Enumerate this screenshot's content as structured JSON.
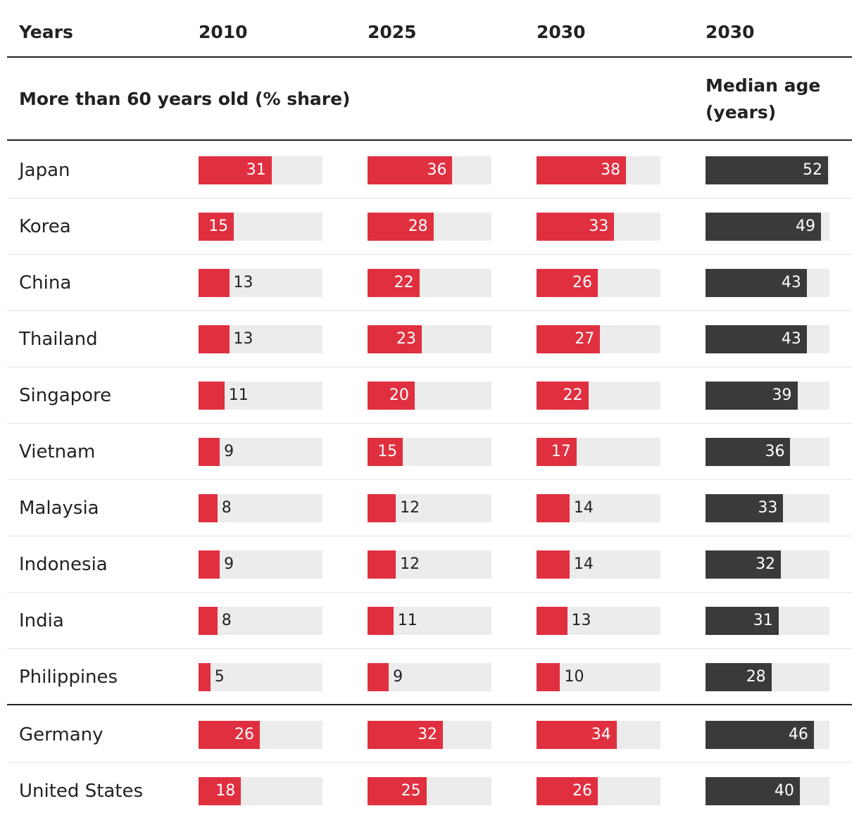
{
  "header": {
    "columns": [
      "Years",
      "2010",
      "2025",
      "2030",
      "2030"
    ]
  },
  "subheader": {
    "share": "More than 60 years old (% share)",
    "median": "Median age (years)"
  },
  "table": {
    "groups": [
      {
        "rows": [
          {
            "country": "Japan",
            "values": [
              31,
              36,
              38,
              52
            ]
          },
          {
            "country": "Korea",
            "values": [
              15,
              28,
              33,
              49
            ]
          },
          {
            "country": "China",
            "values": [
              13,
              22,
              26,
              43
            ]
          },
          {
            "country": "Thailand",
            "values": [
              13,
              23,
              27,
              43
            ]
          },
          {
            "country": "Singapore",
            "values": [
              11,
              20,
              22,
              39
            ]
          },
          {
            "country": "Vietnam",
            "values": [
              9,
              15,
              17,
              36
            ]
          },
          {
            "country": "Malaysia",
            "values": [
              8,
              12,
              14,
              33
            ]
          },
          {
            "country": "Indonesia",
            "values": [
              9,
              12,
              14,
              32
            ]
          },
          {
            "country": "India",
            "values": [
              8,
              11,
              13,
              31
            ]
          },
          {
            "country": "Philippines",
            "values": [
              5,
              9,
              10,
              28
            ]
          }
        ]
      },
      {
        "rows": [
          {
            "country": "Germany",
            "values": [
              26,
              32,
              34,
              46
            ]
          },
          {
            "country": "United States",
            "values": [
              18,
              25,
              26,
              40
            ]
          }
        ]
      }
    ]
  },
  "colors": {
    "share": "#e03040",
    "median": "#3a3a3c",
    "track": "#ececec"
  }
}
